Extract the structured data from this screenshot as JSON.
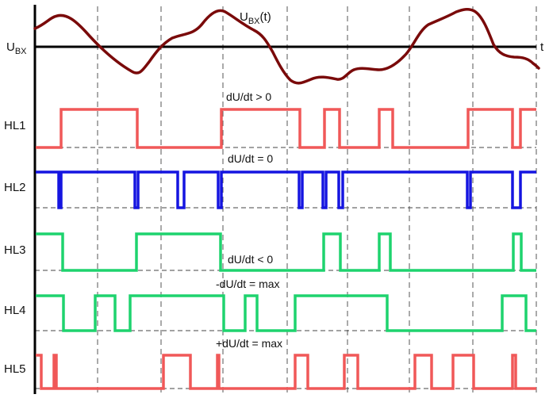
{
  "signal": {
    "name_base": "U",
    "name_sub": "BX",
    "name_suffix": "(t)",
    "axis_base": "U",
    "axis_sub": "BX",
    "time_label": "t",
    "color": "#7a0a0a"
  },
  "channels": [
    {
      "label": "HL1",
      "condition": "dU/dt > 0",
      "color": "#f05858"
    },
    {
      "label": "HL2",
      "condition": "dU/dt = 0",
      "color": "#1515e0"
    },
    {
      "label": "HL3",
      "condition": "dU/dt < 0",
      "color": "#1ed36e"
    },
    {
      "label": "HL4",
      "condition": "-dU/dt = max",
      "color": "#1ed36e"
    },
    {
      "label": "HL5",
      "condition": "+dU/dt = max",
      "color": "#f05858"
    }
  ]
}
